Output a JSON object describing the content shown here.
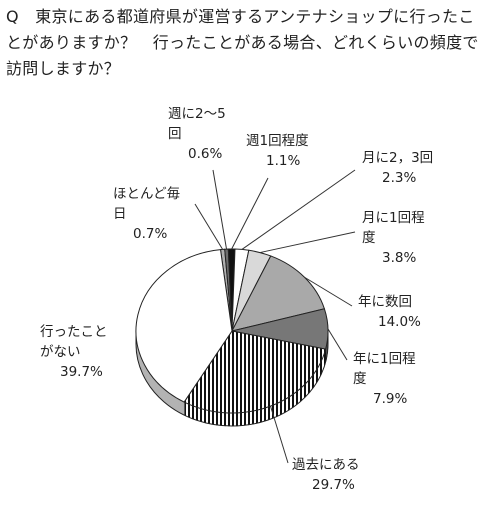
{
  "question": "Q　東京にある都道府県が運営するアンテナショップに行ったことがありますか？　行ったことがある場合、どれくらいの頻度で訪問しますか？",
  "chart_data": {
    "type": "pie",
    "title": "Q　東京にある都道府県が運営するアンテナショップに行ったことがありますか？　行ったことがある場合、どれくらいの頻度で訪問しますか？",
    "slices": [
      {
        "label": "ほとんど毎日",
        "value": 0.7,
        "display": "0.7%",
        "fill": "#b0b0b0"
      },
      {
        "label": "週に2〜5回",
        "value": 0.6,
        "display": "0.6%",
        "fill": "#6e6e6e"
      },
      {
        "label": "週1回程度",
        "value": 1.1,
        "display": "1.1%",
        "fill": "#111111"
      },
      {
        "label": "月に2，3回",
        "value": 2.3,
        "display": "2.3%",
        "fill": "#ffffff"
      },
      {
        "label": "月に1回程度",
        "value": 3.8,
        "display": "3.8%",
        "fill": "#d9d9d9"
      },
      {
        "label": "年に数回",
        "value": 14.0,
        "display": "14.0%",
        "fill": "#a9a9a9"
      },
      {
        "label": "年に1回程度",
        "value": 7.9,
        "display": "7.9%",
        "fill": "#777777"
      },
      {
        "label": "過去にある",
        "value": 29.7,
        "display": "29.7%",
        "fill": "hatch"
      },
      {
        "label": "行ったことがない",
        "value": 39.7,
        "display": "39.7%",
        "fill": "#ffffff"
      }
    ]
  }
}
